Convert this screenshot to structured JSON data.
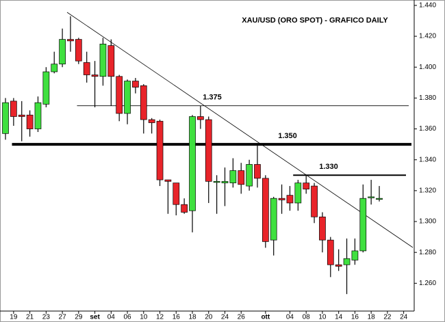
{
  "chart_data": {
    "type": "candlestick",
    "title": "XAU/USD (ORO SPOT) - GRAFICO DAILY",
    "categories": [
      null,
      "19",
      null,
      "21",
      null,
      "23",
      null,
      "27",
      null,
      "29",
      null,
      "set",
      null,
      "04",
      null,
      "06",
      null,
      "10",
      null,
      "12",
      null,
      "16",
      null,
      "18",
      null,
      "20",
      null,
      "24",
      null,
      "26",
      null,
      null,
      "ott",
      null,
      null,
      "04",
      null,
      "08",
      null,
      "10",
      null,
      "14",
      null,
      "16",
      null,
      "18",
      null,
      "22",
      null,
      "24",
      null
    ],
    "open": [
      1.357,
      1.378,
      1.369,
      1.369,
      1.36,
      1.376,
      1.397,
      1.402,
      1.418,
      1.418,
      1.403,
      1.395,
      1.394,
      1.414,
      1.394,
      1.37,
      1.391,
      1.388,
      1.366,
      1.365,
      1.327,
      1.325,
      1.311,
      1.307,
      1.368,
      1.366,
      1.326,
      1.325,
      1.325,
      1.333,
      1.323,
      1.337,
      1.328,
      1.288,
      1.315,
      1.317,
      1.312,
      1.325,
      1.323,
      1.303,
      1.288,
      1.272,
      1.272,
      1.275,
      1.281,
      1.316,
      1.315,
      null,
      null,
      null,
      null
    ],
    "high": [
      1.38,
      1.38,
      1.378,
      1.372,
      1.381,
      1.4,
      1.41,
      1.425,
      1.433,
      1.419,
      1.41,
      1.404,
      1.419,
      1.418,
      1.395,
      1.392,
      1.393,
      1.389,
      1.367,
      1.366,
      1.327,
      1.325,
      1.315,
      1.369,
      1.375,
      1.368,
      1.33,
      1.335,
      1.341,
      1.338,
      1.34,
      1.35,
      1.33,
      1.316,
      1.324,
      1.323,
      1.327,
      1.33,
      1.325,
      1.306,
      1.29,
      1.282,
      1.289,
      1.289,
      1.324,
      1.327,
      1.323,
      null,
      null,
      null,
      null
    ],
    "low": [
      1.353,
      1.362,
      1.352,
      1.355,
      1.358,
      1.374,
      1.396,
      1.4,
      1.41,
      1.402,
      1.39,
      1.374,
      1.388,
      1.375,
      1.365,
      1.363,
      1.383,
      1.357,
      1.357,
      1.323,
      1.305,
      1.304,
      1.305,
      1.293,
      1.36,
      1.312,
      1.305,
      1.31,
      1.322,
      1.318,
      1.32,
      1.322,
      1.283,
      1.278,
      1.305,
      1.307,
      1.307,
      1.318,
      1.299,
      1.28,
      1.264,
      1.268,
      1.253,
      1.272,
      1.28,
      1.311,
      1.313,
      null,
      null,
      null,
      null
    ],
    "close": [
      1.377,
      1.368,
      1.368,
      1.36,
      1.377,
      1.397,
      1.402,
      1.418,
      1.417,
      1.404,
      1.395,
      1.394,
      1.415,
      1.394,
      1.37,
      1.391,
      1.387,
      1.366,
      1.364,
      1.327,
      1.326,
      1.311,
      1.306,
      1.368,
      1.366,
      1.326,
      1.326,
      1.326,
      1.333,
      1.324,
      1.337,
      1.328,
      1.287,
      1.315,
      1.314,
      1.312,
      1.325,
      1.321,
      1.303,
      1.288,
      1.272,
      1.271,
      1.276,
      1.281,
      1.315,
      1.316,
      1.315,
      null,
      null,
      null,
      null
    ],
    "up_color": "#3fe03f",
    "down_color": "#e8242a",
    "levels": [
      {
        "label": "1.375",
        "value": 1.375
      },
      {
        "label": "1.350",
        "value": 1.35
      },
      {
        "label": "1.330",
        "value": 1.33
      }
    ],
    "ylim": [
      1.242,
      1.4435
    ],
    "yticks": [
      {
        "value": 1.26,
        "label": "1.260"
      },
      {
        "value": 1.28,
        "label": "1.280"
      },
      {
        "value": 1.3,
        "label": "1.300"
      },
      {
        "value": 1.32,
        "label": "1.320"
      },
      {
        "value": 1.34,
        "label": "1.340"
      },
      {
        "value": 1.36,
        "label": "1.360"
      },
      {
        "value": 1.38,
        "label": "1.380"
      },
      {
        "value": 1.4,
        "label": "1.400"
      },
      {
        "value": 1.42,
        "label": "1.420"
      },
      {
        "value": 1.44,
        "label": "1.440"
      }
    ]
  }
}
